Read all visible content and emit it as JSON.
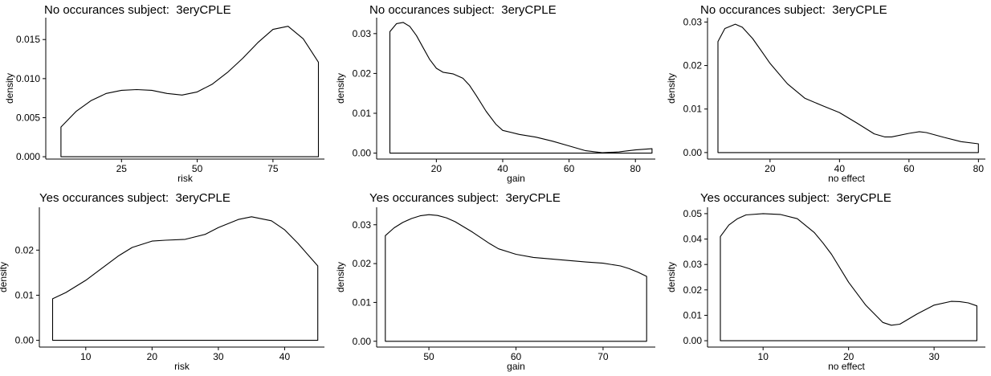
{
  "chart_data": [
    {
      "type": "area",
      "title": "No occurances subject:  3eryCPLE",
      "xlabel": "risk",
      "ylabel": "density",
      "xlim": [
        0,
        92
      ],
      "ylim": [
        -0.0003,
        0.0178
      ],
      "xticks": [
        25,
        50,
        75
      ],
      "yticks": [
        0.0,
        0.005,
        0.01,
        0.015
      ],
      "ytick_labels": [
        "0.000",
        "0.005",
        "0.010",
        "0.015"
      ],
      "x": [
        5,
        10,
        15,
        20,
        25,
        30,
        35,
        40,
        45,
        50,
        55,
        60,
        65,
        70,
        75,
        80,
        85,
        90
      ],
      "y": [
        0.0038,
        0.0058,
        0.0072,
        0.0081,
        0.0085,
        0.0086,
        0.0085,
        0.0081,
        0.0079,
        0.0083,
        0.0093,
        0.0108,
        0.0126,
        0.0146,
        0.0163,
        0.0167,
        0.0151,
        0.0121
      ]
    },
    {
      "type": "area",
      "title": "No occurances subject:  3eryCPLE",
      "xlabel": "gain",
      "ylabel": "density",
      "xlim": [
        2,
        86
      ],
      "ylim": [
        -0.0015,
        0.034
      ],
      "xticks": [
        20,
        40,
        60,
        80
      ],
      "yticks": [
        0.0,
        0.01,
        0.02,
        0.03
      ],
      "ytick_labels": [
        "0.00",
        "0.01",
        "0.02",
        "0.03"
      ],
      "x": [
        6,
        8,
        10,
        12,
        14,
        16,
        18,
        20,
        22,
        25,
        28,
        30,
        32,
        35,
        38,
        40,
        45,
        50,
        55,
        60,
        65,
        70,
        75,
        80,
        85
      ],
      "y": [
        0.0305,
        0.0325,
        0.0328,
        0.0318,
        0.0295,
        0.0265,
        0.0235,
        0.0213,
        0.0203,
        0.0199,
        0.0188,
        0.017,
        0.0145,
        0.0105,
        0.0072,
        0.0057,
        0.0047,
        0.004,
        0.003,
        0.0018,
        0.0006,
        0.0001,
        0.0003,
        0.0008,
        0.0011
      ]
    },
    {
      "type": "area",
      "title": "No occurances subject:  3eryCPLE",
      "xlabel": "no effect",
      "ylabel": "density",
      "xlim": [
        2,
        82
      ],
      "ylim": [
        -0.0015,
        0.031
      ],
      "xticks": [
        20,
        40,
        60,
        80
      ],
      "yticks": [
        0.0,
        0.01,
        0.02,
        0.03
      ],
      "ytick_labels": [
        "0.00",
        "0.01",
        "0.02",
        "0.03"
      ],
      "x": [
        5,
        7,
        10,
        12,
        15,
        18,
        20,
        25,
        30,
        35,
        40,
        45,
        50,
        53,
        55,
        60,
        63,
        65,
        70,
        75,
        80
      ],
      "y": [
        0.0255,
        0.0285,
        0.0295,
        0.0288,
        0.0262,
        0.0228,
        0.0205,
        0.0158,
        0.0125,
        0.0108,
        0.0092,
        0.0068,
        0.0043,
        0.0036,
        0.0036,
        0.0044,
        0.0048,
        0.0046,
        0.0035,
        0.0025,
        0.002
      ]
    },
    {
      "type": "area",
      "title": "Yes occurances subject:  3eryCPLE",
      "xlabel": "risk",
      "ylabel": "density",
      "xlim": [
        3,
        46
      ],
      "ylim": [
        -0.0015,
        0.0295
      ],
      "xticks": [
        10,
        20,
        30,
        40
      ],
      "yticks": [
        0.0,
        0.01,
        0.02
      ],
      "ytick_labels": [
        "0.00",
        "0.01",
        "0.02"
      ],
      "x": [
        5,
        7,
        10,
        12,
        15,
        17,
        20,
        22,
        25,
        28,
        30,
        33,
        35,
        38,
        40,
        42,
        45
      ],
      "y": [
        0.0092,
        0.0106,
        0.0133,
        0.0155,
        0.0188,
        0.0206,
        0.022,
        0.0222,
        0.0224,
        0.0235,
        0.025,
        0.0268,
        0.0274,
        0.0265,
        0.0245,
        0.0215,
        0.0165
      ]
    },
    {
      "type": "area",
      "title": "Yes occurances subject:  3eryCPLE",
      "xlabel": "gain",
      "ylabel": "density",
      "xlim": [
        44,
        76
      ],
      "ylim": [
        -0.0015,
        0.0345
      ],
      "xticks": [
        50,
        60,
        70
      ],
      "yticks": [
        0.0,
        0.01,
        0.02,
        0.03
      ],
      "ytick_labels": [
        "0.00",
        "0.01",
        "0.02",
        "0.03"
      ],
      "x": [
        45,
        46,
        47,
        48,
        49,
        50,
        51,
        52,
        53,
        55,
        57,
        58,
        60,
        62,
        64,
        66,
        68,
        70,
        72,
        73,
        74,
        75
      ],
      "y": [
        0.0272,
        0.0292,
        0.0306,
        0.0316,
        0.0323,
        0.0326,
        0.0324,
        0.0318,
        0.0308,
        0.0281,
        0.0251,
        0.0238,
        0.0224,
        0.0216,
        0.0212,
        0.0208,
        0.0204,
        0.0201,
        0.0194,
        0.0187,
        0.0178,
        0.0167
      ]
    },
    {
      "type": "area",
      "title": "Yes occurances subject:  3eryCPLE",
      "xlabel": "no effect",
      "ylabel": "density",
      "xlim": [
        3.5,
        36
      ],
      "ylim": [
        -0.0025,
        0.0525
      ],
      "xticks": [
        10,
        20,
        30
      ],
      "yticks": [
        0.0,
        0.01,
        0.02,
        0.03,
        0.04,
        0.05
      ],
      "ytick_labels": [
        "0.00",
        "0.01",
        "0.02",
        "0.03",
        "0.04",
        "0.05"
      ],
      "x": [
        5,
        6,
        7,
        8,
        10,
        12,
        14,
        16,
        17,
        18,
        20,
        22,
        24,
        25,
        26,
        28,
        30,
        32,
        33,
        34,
        35
      ],
      "y": [
        0.041,
        0.0455,
        0.048,
        0.0495,
        0.05,
        0.0497,
        0.048,
        0.0425,
        0.0385,
        0.034,
        0.023,
        0.014,
        0.0072,
        0.0061,
        0.0065,
        0.0105,
        0.014,
        0.0155,
        0.0154,
        0.0149,
        0.0137
      ]
    }
  ]
}
